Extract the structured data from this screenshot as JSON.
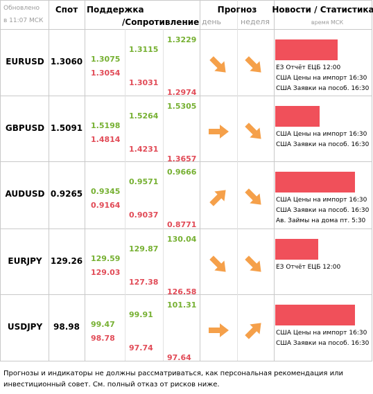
{
  "header": {
    "updated": [
      "Обновлено",
      "в 11:07 МСК"
    ],
    "spot": "Спот",
    "support": "Поддержка",
    "resistance": "/Сопротивление",
    "forecast": "Прогноз",
    "day": "день",
    "week": "неделя",
    "news": "Новости / Статистика",
    "time_note": "время МСК"
  },
  "rows": [
    {
      "pair": "EURUSD",
      "spot": "1.3060",
      "levels": [
        [
          "1.3075",
          "1.3054"
        ],
        [
          "1.3115",
          "1.3031"
        ],
        [
          "1.3229",
          "1.2974"
        ]
      ],
      "news": [
        "ЕЗ Отчёт ЕЦБ 12:00",
        "США Цены на импорт 16:30",
        "США Заявки на пособ. 16:30"
      ]
    },
    {
      "pair": "GBPUSD",
      "spot": "1.5091",
      "levels": [
        [
          "1.5198",
          "1.4814"
        ],
        [
          "1.5264",
          "1.4231"
        ],
        [
          "1.5305",
          "1.3657"
        ]
      ],
      "news": [
        "США Цены на импорт 16:30",
        "США Заявки на пособ. 16:30"
      ]
    },
    {
      "pair": "AUDUSD",
      "spot": "0.9265",
      "levels": [
        [
          "0.9345",
          "0.9164"
        ],
        [
          "0.9571",
          "0.9037"
        ],
        [
          "0.9666",
          "0.8771"
        ]
      ],
      "news": [
        "США Цены на импорт 16:30",
        "США Заявки на пособ. 16:30",
        "Ав. Займы на дома пт. 5:30"
      ]
    },
    {
      "pair": "EURJPY",
      "spot": "129.26",
      "levels": [
        [
          "129.59",
          "129.03"
        ],
        [
          "129.87",
          "127.38"
        ],
        [
          "130.04",
          "126.58"
        ]
      ],
      "news": [
        "ЕЗ Отчёт ЕЦБ 12:00"
      ]
    },
    {
      "pair": "USDJPY",
      "spot": "98.98",
      "levels": [
        [
          "99.47",
          "98.78"
        ],
        [
          "99.91",
          "97.74"
        ],
        [
          "101.31",
          "97.64"
        ]
      ],
      "news": [
        "США Цены на импорт 16:30",
        "США Заявки на пособ. 16:30"
      ]
    }
  ],
  "footer": "Прогнозы и индикаторы не должны рассматриваться, как персональная рекомендация или инвестиционный совет. См. полный отказ от рисков ниже."
}
